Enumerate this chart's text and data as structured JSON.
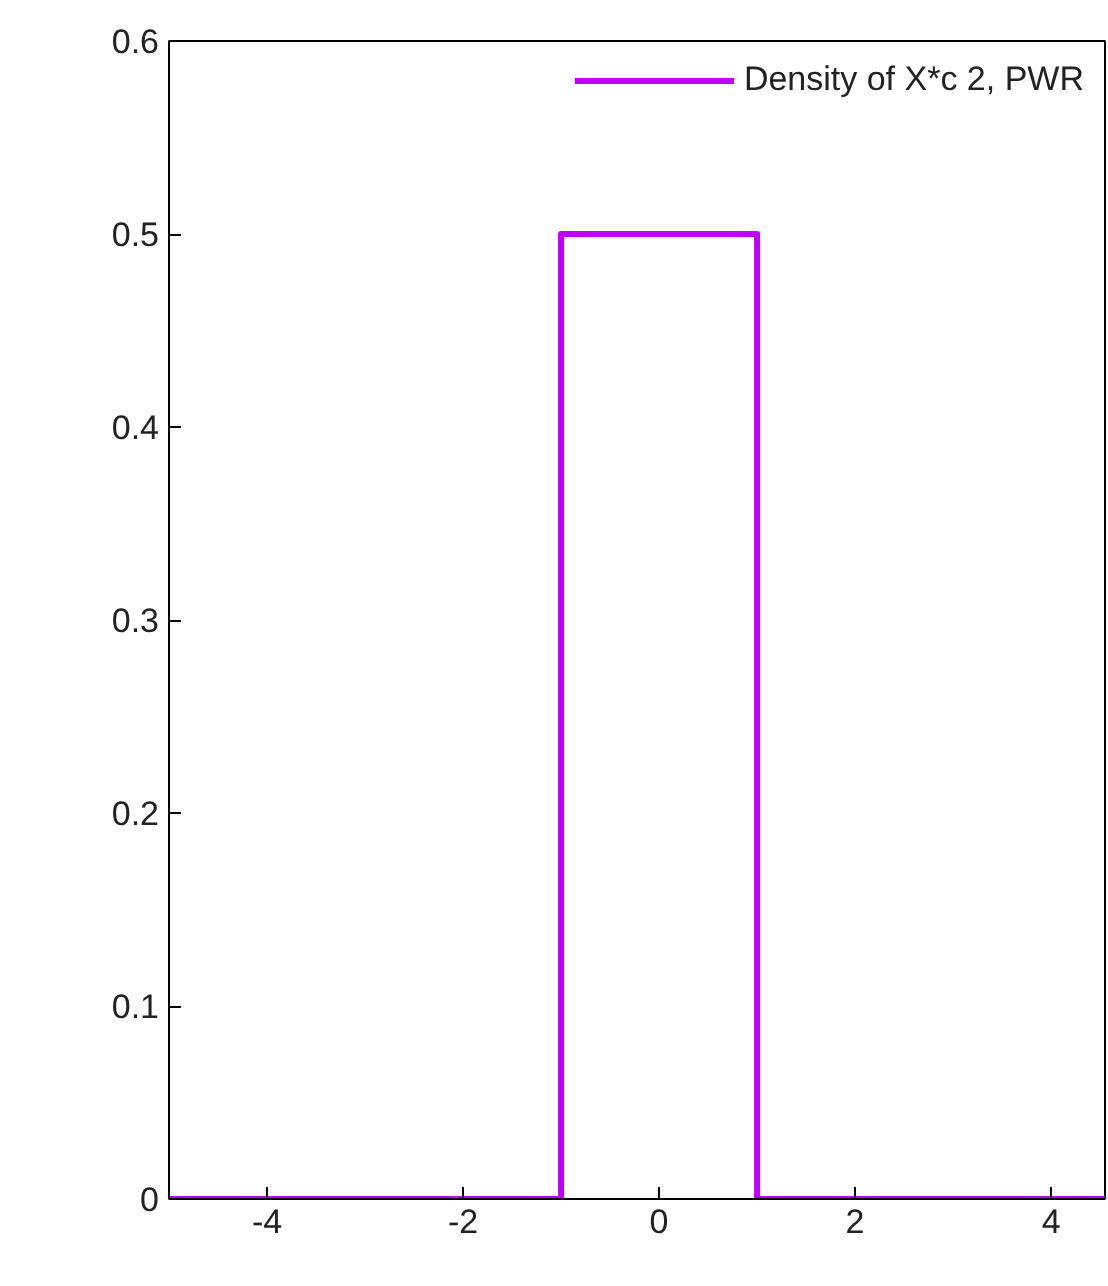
{
  "chart_data": {
    "type": "line",
    "x": [
      -5,
      -1,
      -1,
      1,
      1,
      4.55
    ],
    "series": [
      {
        "name": "Density of X*c 2, PWR",
        "color": "#c000ff",
        "values": [
          0,
          0,
          0.5,
          0.5,
          0,
          0
        ]
      }
    ],
    "xlim": [
      -5,
      4.55
    ],
    "ylim": [
      0,
      0.6
    ],
    "xticks": [
      -4,
      -2,
      0,
      2,
      4
    ],
    "yticks": [
      0,
      0.1,
      0.2,
      0.3,
      0.4,
      0.5,
      0.6
    ],
    "grid": false,
    "legend": "top right"
  }
}
